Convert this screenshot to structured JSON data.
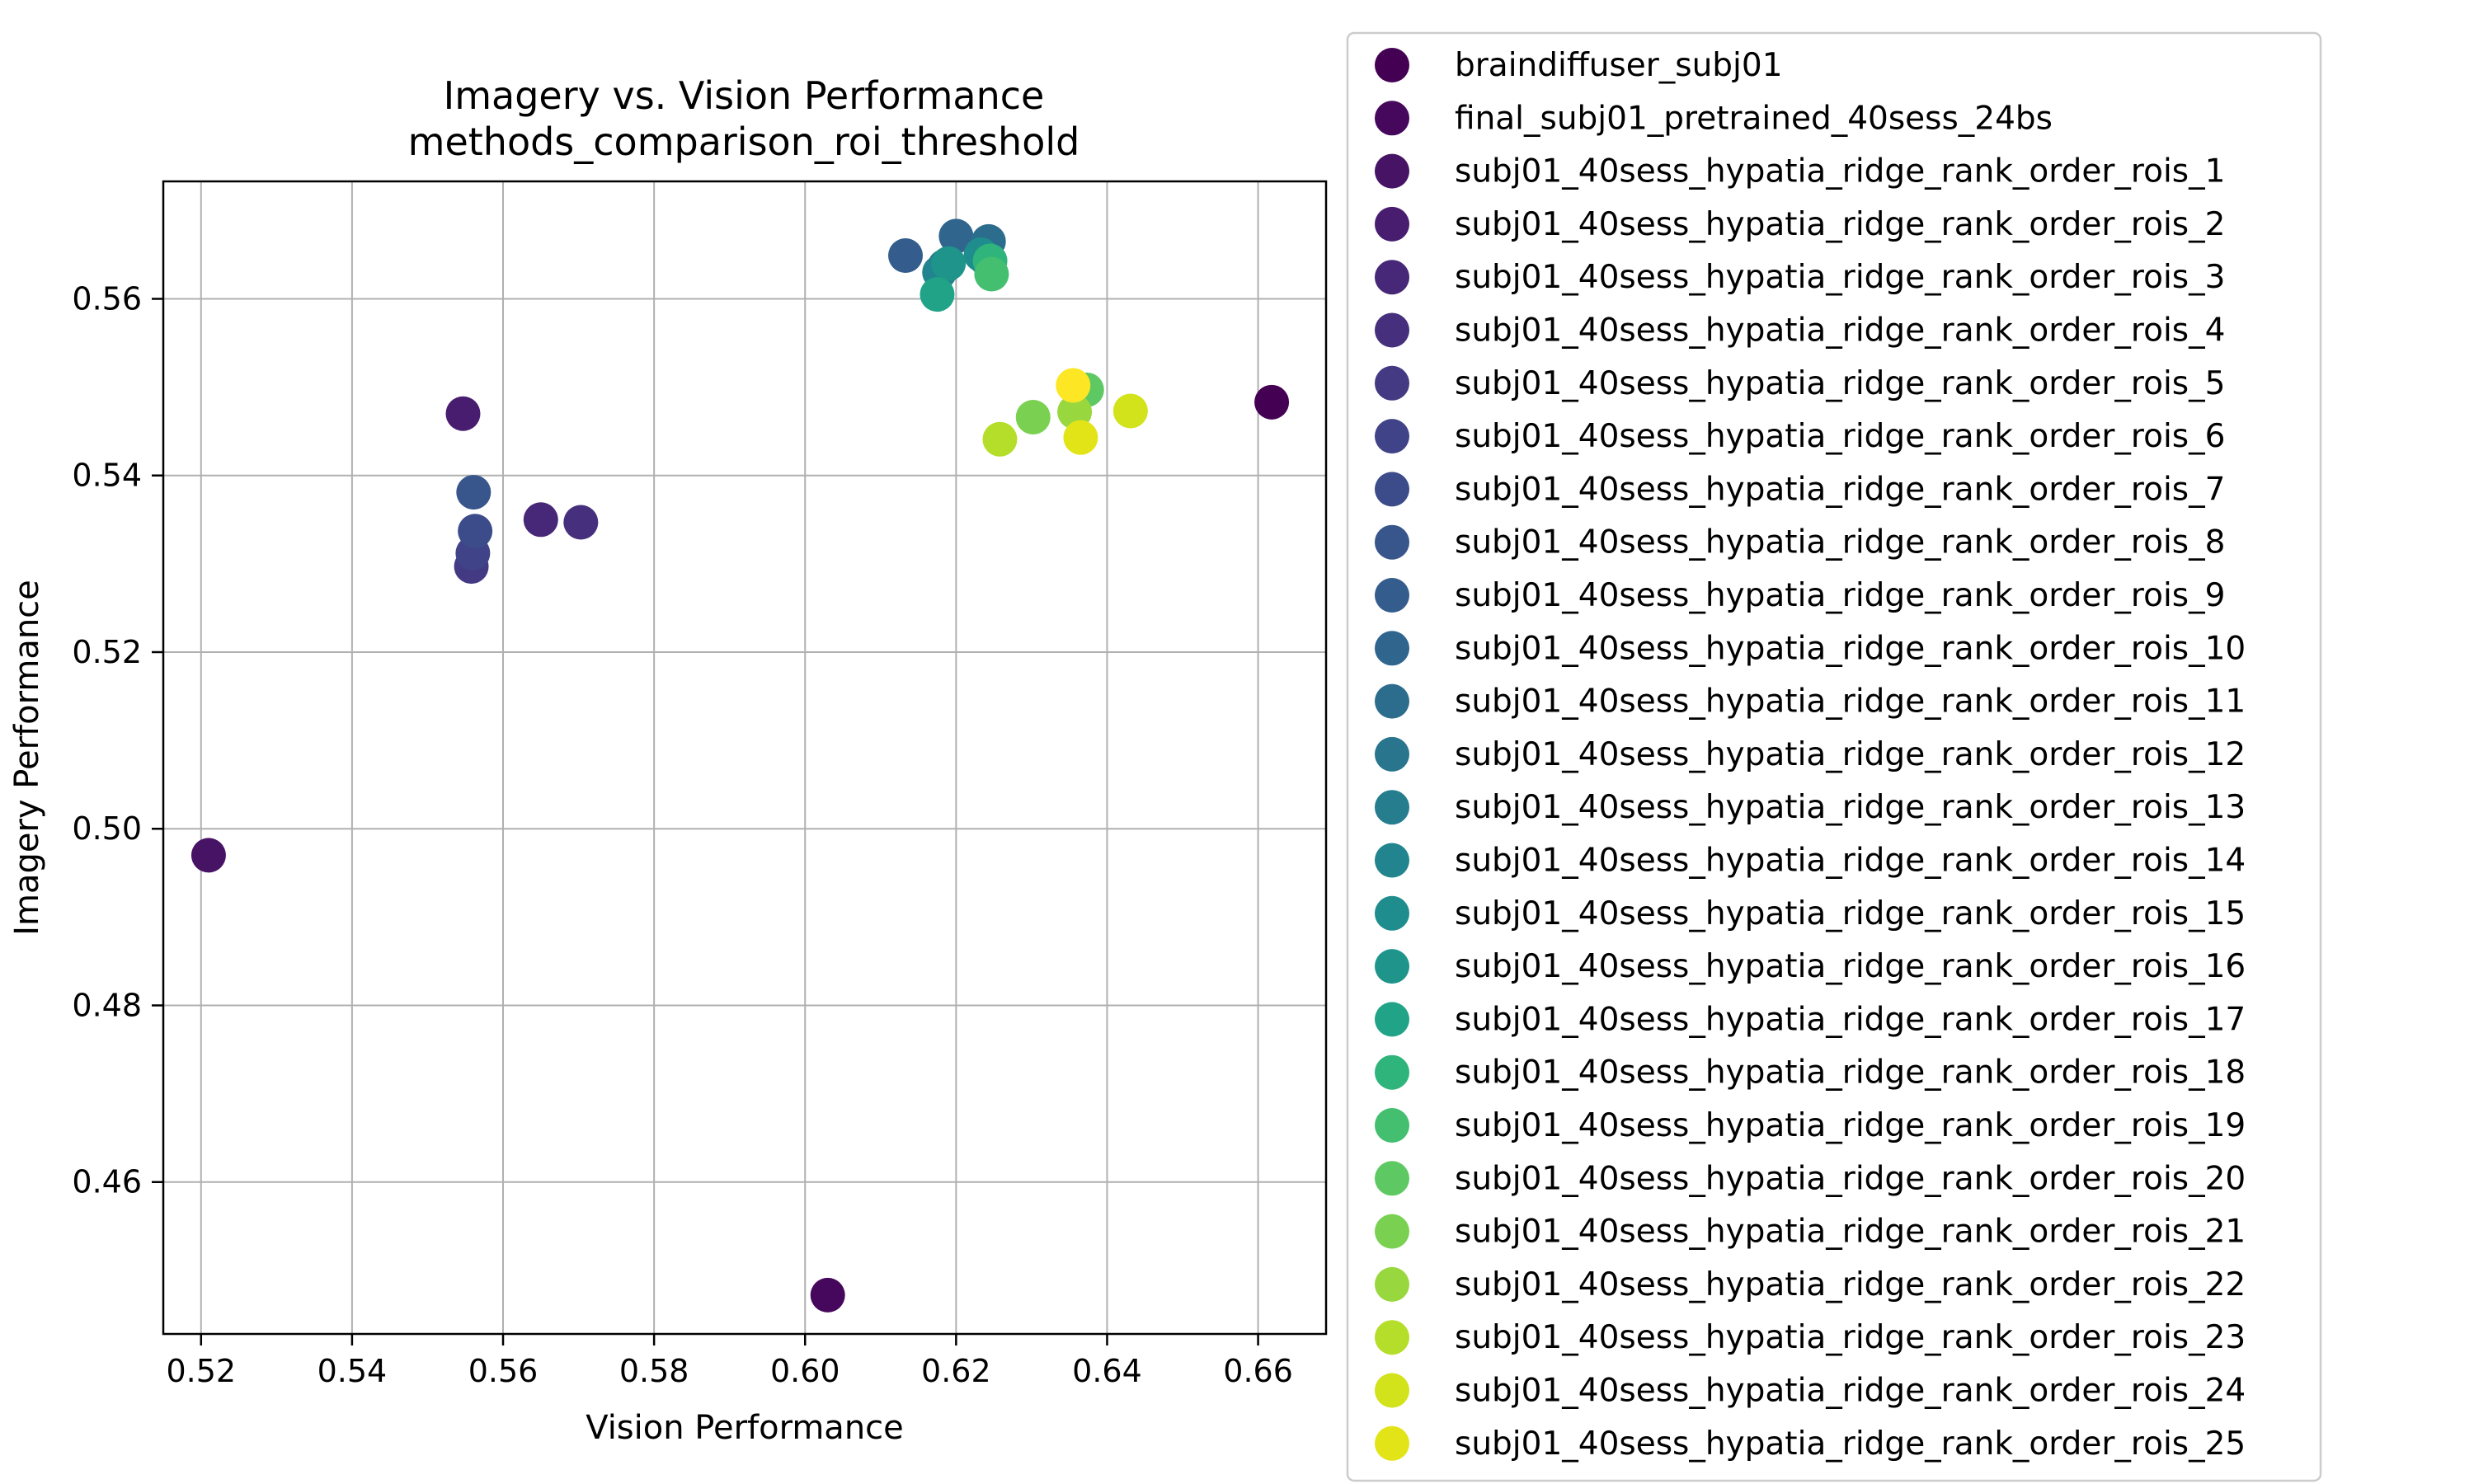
{
  "chart_data": {
    "type": "scatter",
    "title": "Imagery vs. Vision Performance",
    "subtitle": "methods_comparison_roi_threshold",
    "xlabel": "Vision Performance",
    "ylabel": "Imagery Performance",
    "xlim": [
      0.515,
      0.669
    ],
    "ylim": [
      0.4428,
      0.5733
    ],
    "xticks": [
      0.52,
      0.54,
      0.56,
      0.58,
      0.6,
      0.62,
      0.64,
      0.66
    ],
    "xtick_labels": [
      "0.52",
      "0.54",
      "0.56",
      "0.58",
      "0.60",
      "0.62",
      "0.64",
      "0.66"
    ],
    "yticks": [
      0.46,
      0.48,
      0.5,
      0.52,
      0.54,
      0.56
    ],
    "ytick_labels": [
      "0.46",
      "0.48",
      "0.50",
      "0.52",
      "0.54",
      "0.56"
    ],
    "grid": true,
    "legend_position": "outside-right",
    "series": [
      {
        "name": "braindiffuser_subj01",
        "color": "#440154",
        "points": [
          [
            0.6618,
            0.5483
          ]
        ]
      },
      {
        "name": "final_subj01_pretrained_40sess_24bs",
        "color": "#46085c",
        "points": [
          [
            0.603,
            0.4472
          ]
        ]
      },
      {
        "name": "subj01_40sess_hypatia_ridge_rank_order_rois_1",
        "color": "#471365",
        "points": [
          [
            0.521,
            0.497
          ]
        ]
      },
      {
        "name": "subj01_40sess_hypatia_ridge_rank_order_rois_2",
        "color": "#481d6f",
        "points": [
          [
            0.5547,
            0.547
          ]
        ]
      },
      {
        "name": "subj01_40sess_hypatia_ridge_rank_order_rois_3",
        "color": "#472777",
        "points": [
          [
            0.565,
            0.535
          ]
        ]
      },
      {
        "name": "subj01_40sess_hypatia_ridge_rank_order_rois_4",
        "color": "#46307e",
        "points": [
          [
            0.5703,
            0.5347
          ]
        ]
      },
      {
        "name": "subj01_40sess_hypatia_ridge_rank_order_rois_5",
        "color": "#433a83",
        "points": [
          [
            0.5558,
            0.5297
          ]
        ]
      },
      {
        "name": "subj01_40sess_hypatia_ridge_rank_order_rois_6",
        "color": "#404387",
        "points": [
          [
            0.556,
            0.5312
          ]
        ]
      },
      {
        "name": "subj01_40sess_hypatia_ridge_rank_order_rois_7",
        "color": "#3c4c8a",
        "points": [
          [
            0.5563,
            0.5337
          ]
        ]
      },
      {
        "name": "subj01_40sess_hypatia_ridge_rank_order_rois_8",
        "color": "#38558c",
        "points": [
          [
            0.5561,
            0.5381
          ]
        ]
      },
      {
        "name": "subj01_40sess_hypatia_ridge_rank_order_rois_9",
        "color": "#345d8d",
        "points": [
          [
            0.6133,
            0.5649
          ]
        ]
      },
      {
        "name": "subj01_40sess_hypatia_ridge_rank_order_rois_10",
        "color": "#30658e",
        "points": [
          [
            0.62,
            0.5671
          ]
        ]
      },
      {
        "name": "subj01_40sess_hypatia_ridge_rank_order_rois_11",
        "color": "#2c6d8e",
        "points": [
          [
            0.6243,
            0.5665
          ]
        ]
      },
      {
        "name": "subj01_40sess_hypatia_ridge_rank_order_rois_12",
        "color": "#29758e",
        "points": [
          [
            0.6185,
            0.5637
          ]
        ]
      },
      {
        "name": "subj01_40sess_hypatia_ridge_rank_order_rois_13",
        "color": "#267d8e",
        "points": [
          [
            0.624,
            0.5645
          ]
        ]
      },
      {
        "name": "subj01_40sess_hypatia_ridge_rank_order_rois_14",
        "color": "#22848e",
        "points": [
          [
            0.6178,
            0.563
          ]
        ]
      },
      {
        "name": "subj01_40sess_hypatia_ridge_rank_order_rois_15",
        "color": "#1f8c8d",
        "points": [
          [
            0.6233,
            0.565
          ]
        ]
      },
      {
        "name": "subj01_40sess_hypatia_ridge_rank_order_rois_16",
        "color": "#1f948b",
        "points": [
          [
            0.619,
            0.564
          ]
        ]
      },
      {
        "name": "subj01_40sess_hypatia_ridge_rank_order_rois_17",
        "color": "#20a386",
        "points": [
          [
            0.6175,
            0.5605
          ]
        ]
      },
      {
        "name": "subj01_40sess_hypatia_ridge_rank_order_rois_18",
        "color": "#2fb47c",
        "points": [
          [
            0.6245,
            0.5643
          ]
        ]
      },
      {
        "name": "subj01_40sess_hypatia_ridge_rank_order_rois_19",
        "color": "#44bf70",
        "points": [
          [
            0.6247,
            0.5628
          ]
        ]
      },
      {
        "name": "subj01_40sess_hypatia_ridge_rank_order_rois_20",
        "color": "#5ec962",
        "points": [
          [
            0.6373,
            0.5497
          ]
        ]
      },
      {
        "name": "subj01_40sess_hypatia_ridge_rank_order_rois_21",
        "color": "#7ad151",
        "points": [
          [
            0.6302,
            0.5466
          ]
        ]
      },
      {
        "name": "subj01_40sess_hypatia_ridge_rank_order_rois_22",
        "color": "#98d83e",
        "points": [
          [
            0.6357,
            0.5472
          ]
        ]
      },
      {
        "name": "subj01_40sess_hypatia_ridge_rank_order_rois_23",
        "color": "#b5de2b",
        "points": [
          [
            0.6258,
            0.5441
          ]
        ]
      },
      {
        "name": "subj01_40sess_hypatia_ridge_rank_order_rois_24",
        "color": "#d2e21b",
        "points": [
          [
            0.6431,
            0.5473
          ]
        ]
      },
      {
        "name": "subj01_40sess_hypatia_ridge_rank_order_rois_25",
        "color": "#e2e418",
        "points": [
          [
            0.6365,
            0.5443
          ]
        ]
      },
      {
        "color": "#fde725",
        "points": [
          [
            0.6355,
            0.5502
          ]
        ]
      }
    ]
  }
}
